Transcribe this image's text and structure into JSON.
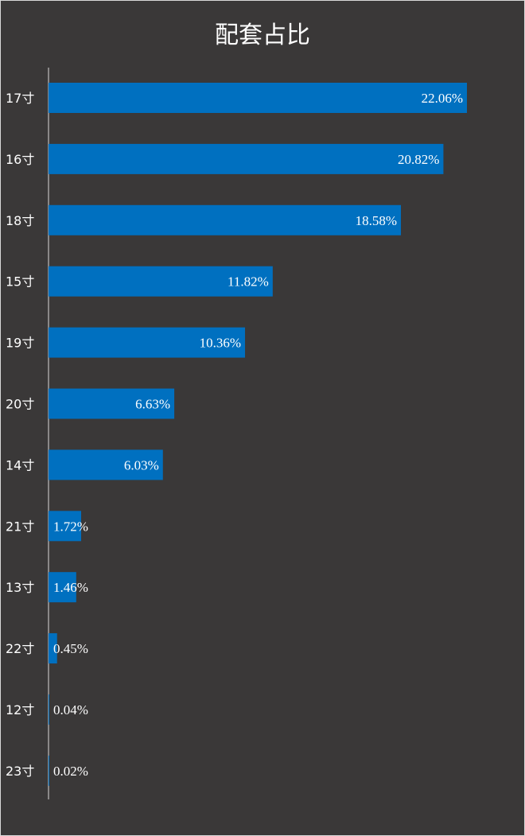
{
  "chart_data": {
    "type": "bar",
    "orientation": "horizontal",
    "title": "配套占比",
    "categories": [
      "17寸",
      "16寸",
      "18寸",
      "15寸",
      "19寸",
      "20寸",
      "14寸",
      "21寸",
      "13寸",
      "22寸",
      "12寸",
      "23寸"
    ],
    "values": [
      22.06,
      20.82,
      18.58,
      11.82,
      10.36,
      6.63,
      6.03,
      1.72,
      1.46,
      0.45,
      0.04,
      0.02
    ],
    "value_labels": [
      "22.06%",
      "20.82%",
      "18.58%",
      "11.82%",
      "10.36%",
      "6.63%",
      "6.03%",
      "1.72%",
      "1.46%",
      "0.45%",
      "0.04%",
      "0.02%"
    ],
    "bar_color": "#0070c0",
    "background_color": "#3a3838",
    "grid": false,
    "legend": "none"
  }
}
